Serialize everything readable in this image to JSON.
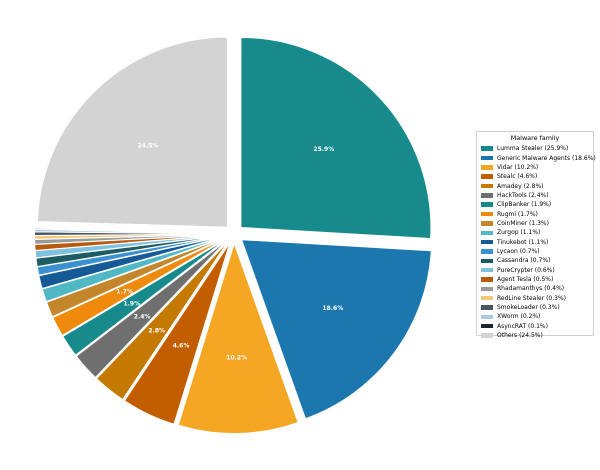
{
  "chart_data": {
    "type": "pie",
    "legend_title": "Malware family",
    "legend_position": "right",
    "start_angle_deg": 90,
    "direction": "counterclockwise",
    "label_threshold_percent": 1.5,
    "slices": [
      {
        "name": "Lumma Stealer",
        "value": 25.9,
        "label": "25.9%",
        "legend": "Lumma Stealer  (25.9%)",
        "color": "#178a8c",
        "explode": 0.05
      },
      {
        "name": "Generic Malware Agents",
        "value": 18.6,
        "label": "18.6%",
        "legend": "Generic Malware Agents  (18.6%)",
        "color": "#1b77ad",
        "explode": 0.05
      },
      {
        "name": "Vidar",
        "value": 10.2,
        "label": "10.2%",
        "legend": "Vidar  (10.2%)",
        "color": "#f5a623",
        "explode": 0.05
      },
      {
        "name": "Stealc",
        "value": 4.6,
        "label": "4.6%",
        "legend": "Stealc  (4.6%)",
        "color": "#c25e00",
        "explode": 0.05
      },
      {
        "name": "Amadey",
        "value": 2.8,
        "label": "2.8%",
        "legend": "Amadey  (2.8%)",
        "color": "#c47a00",
        "explode": 0.05
      },
      {
        "name": "HackTools",
        "value": 2.4,
        "label": "2.4%",
        "legend": "HackTools  (2.4%)",
        "color": "#6f6f6f",
        "explode": 0.05
      },
      {
        "name": "ClipBanker",
        "value": 1.9,
        "label": "1.9%",
        "legend": "ClipBanker  (1.9%)",
        "color": "#178a8c",
        "explode": 0.05
      },
      {
        "name": "Rugmi",
        "value": 1.7,
        "label": "1.7%",
        "legend": "Rugmi  (1.7%)",
        "color": "#f08a0c",
        "explode": 0.05
      },
      {
        "name": "CoinMiner",
        "value": 1.3,
        "label": "",
        "legend": "CoinMiner  (1.3%)",
        "color": "#c4862a",
        "explode": 0.05
      },
      {
        "name": "Zurgop",
        "value": 1.1,
        "label": "",
        "legend": "Zurgop  (1.1%)",
        "color": "#4fb8c4",
        "explode": 0.05
      },
      {
        "name": "Tinukebot",
        "value": 1.1,
        "label": "",
        "legend": "Tinukebot  (1.1%)",
        "color": "#155a96",
        "explode": 0.05
      },
      {
        "name": "Lycaon",
        "value": 0.7,
        "label": "",
        "legend": "Lycaon  (0.7%)",
        "color": "#3a90d0",
        "explode": 0.05
      },
      {
        "name": "Cassandra",
        "value": 0.7,
        "label": "",
        "legend": "Cassandra  (0.7%)",
        "color": "#1d5c63",
        "explode": 0.05
      },
      {
        "name": "PureCrypter",
        "value": 0.6,
        "label": "",
        "legend": "PureCrypter  (0.6%)",
        "color": "#7fc2e0",
        "explode": 0.05
      },
      {
        "name": "Agent Tesla",
        "value": 0.5,
        "label": "",
        "legend": "Agent Tesla  (0.5%)",
        "color": "#b85a0e",
        "explode": 0.05
      },
      {
        "name": "Rhadamanthys",
        "value": 0.4,
        "label": "",
        "legend": "Rhadamanthys  (0.4%)",
        "color": "#9a9a9a",
        "explode": 0.05
      },
      {
        "name": "RedLine Stealer",
        "value": 0.3,
        "label": "",
        "legend": "RedLine Stealer  (0.3%)",
        "color": "#f5c97a",
        "explode": 0.05
      },
      {
        "name": "SmokeLoader",
        "value": 0.3,
        "label": "",
        "legend": "SmokeLoader  (0.3%)",
        "color": "#4a5560",
        "explode": 0.05
      },
      {
        "name": "XWorm",
        "value": 0.2,
        "label": "",
        "legend": "XWorm  (0.2%)",
        "color": "#a9c8e4",
        "explode": 0.05
      },
      {
        "name": "AsyncRAT",
        "value": 0.1,
        "label": "",
        "legend": "AsyncRAT  (0.1%)",
        "color": "#1c2530",
        "explode": 0.05
      },
      {
        "name": "Others",
        "value": 24.5,
        "label": "24.5%",
        "legend": "Others  (24.5%)",
        "color": "#d3d3d3",
        "explode": 0.05
      }
    ]
  }
}
